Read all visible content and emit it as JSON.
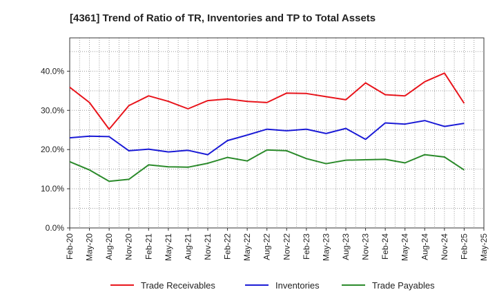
{
  "chart_data": {
    "type": "line",
    "title": "[4361]  Trend of Ratio of TR, Inventories and TP to Total Assets",
    "xlabel": "",
    "ylabel": "",
    "x_tick_labels": [
      "Feb-20",
      "May-20",
      "Aug-20",
      "Nov-20",
      "Feb-21",
      "May-21",
      "Aug-21",
      "Nov-21",
      "Feb-22",
      "May-22",
      "Aug-22",
      "Nov-22",
      "Feb-23",
      "May-23",
      "Aug-23",
      "Nov-23",
      "Feb-24",
      "May-24",
      "Aug-24",
      "Nov-24",
      "Feb-25",
      "May-25"
    ],
    "y_tick_labels": [
      "0.0%",
      "10.0%",
      "20.0%",
      "30.0%",
      "40.0%"
    ],
    "ylim": [
      0,
      40
    ],
    "grid": true,
    "legend_position": "bottom",
    "categories": [
      "Feb-20",
      "May-20",
      "Aug-20",
      "Nov-20",
      "Feb-21",
      "May-21",
      "Aug-21",
      "Nov-21",
      "Feb-22",
      "May-22",
      "Aug-22",
      "Nov-22",
      "Feb-23",
      "May-23",
      "Aug-23",
      "Nov-23",
      "Feb-24",
      "May-24",
      "Aug-24",
      "Nov-24",
      "Feb-25"
    ],
    "series": [
      {
        "name": "Trade Receivables",
        "color": "#e8141b",
        "values": [
          35.9,
          32.0,
          25.2,
          31.2,
          33.7,
          32.3,
          30.4,
          32.5,
          32.9,
          32.3,
          32.0,
          34.4,
          34.3,
          33.5,
          32.7,
          37.0,
          34.0,
          33.7,
          37.3,
          39.5,
          31.8
        ]
      },
      {
        "name": "Inventories",
        "color": "#1a1ad6",
        "values": [
          23.0,
          23.4,
          23.3,
          19.7,
          20.1,
          19.4,
          19.8,
          18.7,
          22.3,
          23.7,
          25.2,
          24.8,
          25.2,
          24.1,
          25.4,
          22.6,
          26.8,
          26.5,
          27.4,
          25.9,
          26.7
        ]
      },
      {
        "name": "Trade Payables",
        "color": "#2a8a2a",
        "values": [
          16.9,
          14.8,
          11.9,
          12.4,
          16.1,
          15.6,
          15.5,
          16.5,
          18.0,
          17.1,
          19.9,
          19.7,
          17.7,
          16.4,
          17.3,
          17.4,
          17.5,
          16.6,
          18.7,
          18.1,
          14.8
        ]
      }
    ]
  }
}
